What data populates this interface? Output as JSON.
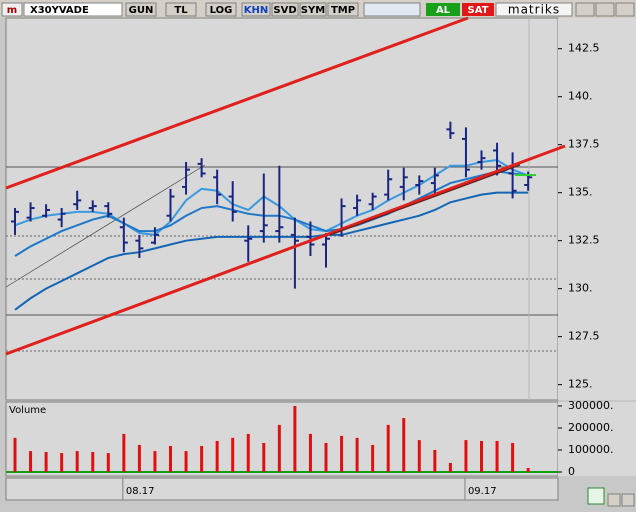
{
  "toolbar": {
    "symbol": "X30YVADE",
    "buttons": [
      "GUN",
      "TL",
      "LOG",
      "KHN",
      "SVD",
      "SYM",
      "TMP"
    ],
    "buy": "AL",
    "sell": "SAT",
    "brand": "matriks"
  },
  "chart_data": [
    {
      "type": "ohlc",
      "color": "#1a2580",
      "categories": [
        null,
        null,
        null,
        null,
        null,
        null,
        null,
        "08.17",
        null,
        null,
        null,
        null,
        null,
        null,
        null,
        null,
        null,
        null,
        null,
        null,
        null,
        null,
        null,
        null,
        null,
        null,
        null,
        null,
        null,
        "09.17",
        null,
        null,
        null,
        null
      ],
      "open": [
        133.5,
        133.7,
        133.8,
        133.6,
        134.4,
        134.2,
        134.3,
        133.2,
        132.5,
        132.4,
        133.8,
        135.3,
        136.5,
        135.8,
        134.8,
        132.5,
        133.0,
        133.0,
        132.8,
        132.7,
        132.3,
        133.0,
        134.2,
        134.4,
        134.9,
        135.3,
        135.4,
        135.5,
        138.3,
        137.8,
        136.6,
        137.2,
        136.0,
        135.4
      ],
      "high": [
        134.2,
        134.5,
        134.4,
        134.2,
        135.1,
        134.6,
        134.5,
        133.7,
        132.8,
        133.2,
        135.2,
        136.6,
        136.8,
        136.2,
        135.6,
        133.3,
        136.0,
        136.4,
        133.7,
        133.5,
        132.9,
        134.7,
        134.9,
        135.0,
        136.2,
        136.3,
        135.9,
        136.3,
        138.7,
        138.4,
        137.2,
        137.6,
        137.1,
        136.1
      ],
      "low": [
        132.8,
        133.5,
        133.7,
        133.2,
        134.1,
        134.0,
        133.7,
        131.9,
        131.6,
        132.3,
        133.5,
        134.9,
        135.8,
        134.4,
        133.5,
        131.4,
        132.4,
        132.4,
        130.0,
        131.7,
        131.1,
        132.7,
        133.8,
        134.1,
        134.6,
        134.6,
        134.9,
        134.9,
        137.8,
        135.8,
        136.2,
        135.9,
        134.7,
        135.1
      ],
      "close": [
        134.0,
        134.2,
        134.1,
        133.9,
        134.6,
        134.3,
        133.9,
        132.4,
        132.1,
        132.8,
        134.8,
        136.2,
        136.0,
        134.9,
        134.0,
        132.6,
        133.3,
        133.2,
        132.5,
        132.3,
        132.6,
        134.3,
        134.6,
        134.8,
        135.7,
        135.8,
        135.6,
        135.9,
        138.1,
        136.2,
        136.8,
        136.4,
        135.1,
        135.8
      ],
      "series": [
        {
          "color": "#3a9ae0",
          "values": [
            133.3,
            133.6,
            133.8,
            133.9,
            134.0,
            134.0,
            133.9,
            133.4,
            132.9,
            132.8,
            133.5,
            134.6,
            135.2,
            135.1,
            134.4,
            134.1,
            134.8,
            134.3,
            133.6,
            133.1,
            133.0,
            133.4,
            133.8,
            134.1,
            134.6,
            135.0,
            135.4,
            135.9,
            136.4,
            136.4,
            136.6,
            136.7,
            136.2,
            135.9
          ]
        },
        {
          "color": "#1f78c8",
          "values": [
            131.7,
            132.2,
            132.6,
            133.0,
            133.3,
            133.6,
            133.8,
            133.4,
            133.0,
            133.0,
            133.3,
            133.8,
            134.2,
            134.3,
            134.1,
            133.9,
            133.8,
            133.8,
            133.6,
            133.3,
            133.0,
            133.1,
            133.3,
            133.6,
            133.9,
            134.3,
            134.7,
            135.1,
            135.5,
            135.7,
            135.9,
            136.1,
            136.0,
            135.9
          ]
        },
        {
          "color": "#1565b5",
          "values": [
            128.9,
            129.5,
            130.0,
            130.4,
            130.8,
            131.2,
            131.6,
            131.8,
            131.9,
            132.1,
            132.3,
            132.5,
            132.6,
            132.7,
            132.7,
            132.7,
            132.7,
            132.7,
            132.7,
            132.7,
            132.8,
            132.8,
            133.0,
            133.2,
            133.4,
            133.6,
            133.8,
            134.1,
            134.5,
            134.7,
            134.9,
            135.0,
            135.0,
            135.0
          ]
        }
      ],
      "ylim": [
        124.2,
        144.1
      ],
      "yticks": [
        {
          "value": 125,
          "label": "125."
        },
        127.5,
        {
          "value": 130,
          "label": "130."
        },
        132.5,
        {
          "value": 135,
          "label": "135."
        },
        137.5,
        {
          "value": 140,
          "label": "140."
        },
        142.5
      ]
    },
    {
      "type": "bar",
      "title": "Volume",
      "color": "#e01010",
      "values": [
        155000,
        95000,
        91000,
        86000,
        95000,
        91000,
        86000,
        173000,
        123000,
        95000,
        118000,
        95000,
        118000,
        141000,
        155000,
        173000,
        132000,
        214000,
        300000,
        173000,
        132000,
        164000,
        155000,
        123000,
        214000,
        245000,
        145000,
        100000,
        41000,
        145000,
        141000,
        141000,
        132000,
        18000
      ],
      "ylim": [
        0,
        318000
      ],
      "yticks": [
        0,
        {
          "value": 100000,
          "label": "100000."
        },
        {
          "value": 200000,
          "label": "200000."
        },
        {
          "value": 300000,
          "label": "300000."
        }
      ]
    }
  ]
}
